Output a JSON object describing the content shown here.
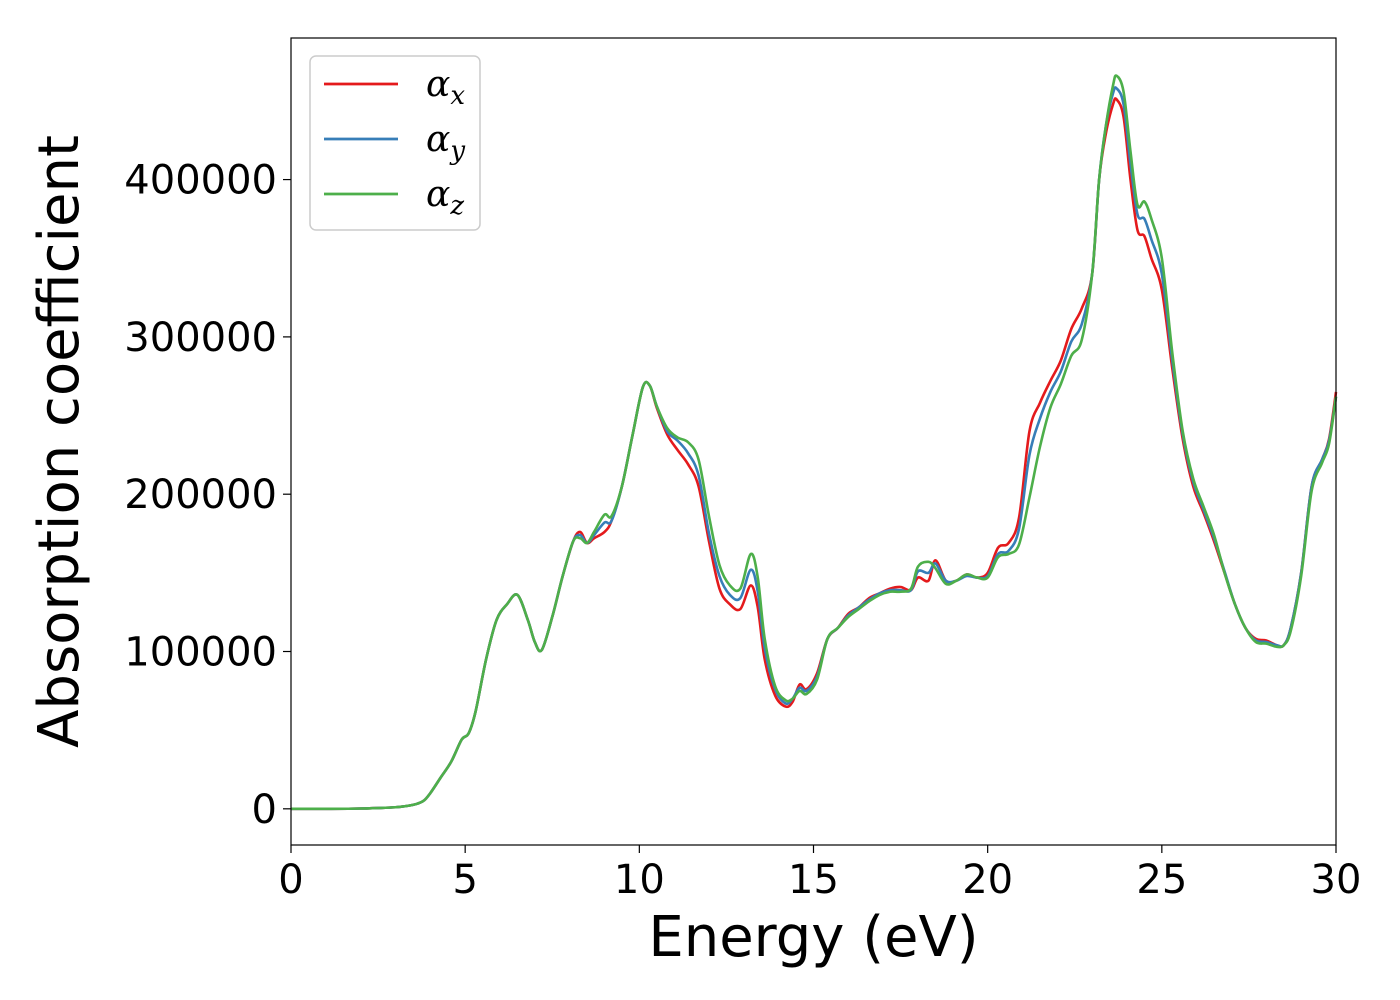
{
  "chart_data": {
    "type": "line",
    "xlabel": "Energy (eV)",
    "ylabel": "Absorption coefficient",
    "xlim": [
      0,
      30
    ],
    "ylim": [
      -23000,
      490000
    ],
    "xticks": [
      0,
      5,
      10,
      15,
      20,
      25,
      30
    ],
    "yticks": [
      0,
      100000,
      200000,
      300000,
      400000
    ],
    "grid": false,
    "legend_position": "top-left",
    "series": [
      {
        "name": "α_x",
        "legend_base": "α",
        "legend_sub": "x",
        "color": "#e41a1c",
        "x": [
          0,
          1,
          2,
          3,
          3.5,
          3.8,
          4.0,
          4.3,
          4.6,
          4.9,
          5.1,
          5.3,
          5.6,
          5.9,
          6.2,
          6.5,
          6.8,
          7.0,
          7.2,
          7.5,
          7.8,
          8.1,
          8.3,
          8.5,
          8.7,
          9.0,
          9.2,
          9.5,
          9.8,
          10.1,
          10.3,
          10.5,
          10.8,
          11.1,
          11.4,
          11.7,
          12.0,
          12.3,
          12.6,
          12.9,
          13.2,
          13.4,
          13.6,
          13.9,
          14.2,
          14.4,
          14.6,
          14.8,
          15.1,
          15.4,
          15.7,
          16.0,
          16.3,
          16.6,
          16.9,
          17.2,
          17.5,
          17.8,
          18.0,
          18.3,
          18.5,
          18.8,
          19.1,
          19.4,
          19.7,
          20.0,
          20.3,
          20.6,
          20.9,
          21.2,
          21.5,
          21.8,
          22.1,
          22.4,
          22.7,
          23.0,
          23.2,
          23.4,
          23.6,
          23.7,
          23.9,
          24.1,
          24.3,
          24.5,
          24.7,
          25.0,
          25.3,
          25.6,
          25.9,
          26.2,
          26.5,
          26.8,
          27.1,
          27.4,
          27.7,
          28.0,
          28.3,
          28.5,
          28.7,
          29.0,
          29.3,
          29.6,
          29.8,
          30.0
        ],
        "y": [
          0,
          0,
          200,
          1000,
          2500,
          5000,
          10000,
          20000,
          30000,
          44000,
          48000,
          62000,
          95000,
          120000,
          130000,
          136000,
          120000,
          106000,
          101000,
          122000,
          148000,
          170000,
          176000,
          169000,
          172000,
          176000,
          183000,
          205000,
          237000,
          268000,
          269000,
          255000,
          238000,
          228000,
          219000,
          205000,
          170000,
          140000,
          130000,
          127000,
          142000,
          128000,
          95000,
          72000,
          65000,
          68000,
          79000,
          76000,
          86000,
          108000,
          115000,
          124000,
          128000,
          134000,
          137000,
          140000,
          141000,
          139000,
          147000,
          145000,
          158000,
          145000,
          145000,
          149000,
          147000,
          150000,
          166000,
          169000,
          185000,
          240000,
          258000,
          272000,
          285000,
          305000,
          318000,
          340000,
          400000,
          430000,
          448000,
          451000,
          440000,
          400000,
          368000,
          364000,
          350000,
          330000,
          280000,
          235000,
          205000,
          188000,
          170000,
          150000,
          130000,
          115000,
          108000,
          107000,
          104000,
          104000,
          115000,
          150000,
          205000,
          222000,
          235000,
          265000
        ]
      },
      {
        "name": "α_y",
        "legend_base": "α",
        "legend_sub": "y",
        "color": "#377eb8",
        "x": [
          0,
          1,
          2,
          3,
          3.5,
          3.8,
          4.0,
          4.3,
          4.6,
          4.9,
          5.1,
          5.3,
          5.6,
          5.9,
          6.2,
          6.5,
          6.8,
          7.0,
          7.2,
          7.5,
          7.8,
          8.1,
          8.3,
          8.5,
          8.7,
          9.0,
          9.2,
          9.5,
          9.8,
          10.1,
          10.3,
          10.5,
          10.8,
          11.1,
          11.4,
          11.7,
          12.0,
          12.3,
          12.6,
          12.9,
          13.2,
          13.4,
          13.6,
          13.9,
          14.2,
          14.4,
          14.6,
          14.8,
          15.1,
          15.4,
          15.7,
          16.0,
          16.3,
          16.6,
          16.9,
          17.2,
          17.5,
          17.8,
          18.0,
          18.3,
          18.5,
          18.8,
          19.1,
          19.4,
          19.7,
          20.0,
          20.3,
          20.6,
          20.9,
          21.2,
          21.5,
          21.8,
          22.1,
          22.4,
          22.7,
          23.0,
          23.2,
          23.4,
          23.6,
          23.7,
          23.9,
          24.1,
          24.3,
          24.5,
          24.7,
          25.0,
          25.3,
          25.6,
          25.9,
          26.2,
          26.5,
          26.8,
          27.1,
          27.4,
          27.7,
          28.0,
          28.3,
          28.5,
          28.7,
          29.0,
          29.3,
          29.6,
          29.8,
          30.0
        ],
        "y": [
          0,
          0,
          200,
          1000,
          2500,
          5000,
          10000,
          20000,
          30000,
          44000,
          48000,
          62000,
          95000,
          120000,
          130000,
          136000,
          120000,
          106000,
          101000,
          122000,
          148000,
          170000,
          174000,
          169000,
          174000,
          182000,
          183000,
          205000,
          237000,
          268000,
          269000,
          256000,
          240000,
          234000,
          226000,
          212000,
          175000,
          148000,
          136000,
          134000,
          152000,
          138000,
          102000,
          76000,
          67000,
          70000,
          77000,
          75000,
          84000,
          108000,
          115000,
          123000,
          128000,
          133000,
          137000,
          139000,
          139000,
          139000,
          151000,
          150000,
          156000,
          145000,
          145000,
          148000,
          147000,
          148000,
          162000,
          164000,
          178000,
          225000,
          248000,
          265000,
          278000,
          297000,
          308000,
          340000,
          400000,
          435000,
          455000,
          458000,
          448000,
          410000,
          378000,
          375000,
          362000,
          340000,
          285000,
          238000,
          208000,
          190000,
          172000,
          151000,
          130000,
          115000,
          107000,
          106000,
          104000,
          104000,
          115000,
          150000,
          205000,
          222000,
          234000,
          262000
        ]
      },
      {
        "name": "α_z",
        "legend_base": "α",
        "legend_sub": "z",
        "color": "#4daf4a",
        "x": [
          0,
          1,
          2,
          3,
          3.5,
          3.8,
          4.0,
          4.3,
          4.6,
          4.9,
          5.1,
          5.3,
          5.6,
          5.9,
          6.2,
          6.5,
          6.8,
          7.0,
          7.2,
          7.5,
          7.8,
          8.1,
          8.3,
          8.5,
          8.7,
          9.0,
          9.2,
          9.5,
          9.8,
          10.1,
          10.3,
          10.5,
          10.8,
          11.1,
          11.4,
          11.7,
          12.0,
          12.3,
          12.6,
          12.9,
          13.2,
          13.4,
          13.6,
          13.9,
          14.2,
          14.4,
          14.6,
          14.8,
          15.1,
          15.4,
          15.7,
          16.0,
          16.3,
          16.6,
          16.9,
          17.2,
          17.5,
          17.8,
          18.0,
          18.3,
          18.5,
          18.8,
          19.1,
          19.4,
          19.7,
          20.0,
          20.3,
          20.6,
          20.9,
          21.2,
          21.5,
          21.8,
          22.1,
          22.4,
          22.7,
          23.0,
          23.2,
          23.4,
          23.6,
          23.7,
          23.9,
          24.1,
          24.3,
          24.5,
          24.7,
          25.0,
          25.3,
          25.6,
          25.9,
          26.2,
          26.5,
          26.8,
          27.1,
          27.4,
          27.7,
          28.0,
          28.3,
          28.5,
          28.7,
          29.0,
          29.3,
          29.6,
          29.8,
          30.0
        ],
        "y": [
          0,
          0,
          200,
          1000,
          2500,
          5000,
          10000,
          20000,
          30000,
          44000,
          48000,
          62000,
          95000,
          120000,
          130000,
          136000,
          120000,
          106000,
          101000,
          122000,
          148000,
          170000,
          172000,
          169000,
          176000,
          187000,
          186000,
          205000,
          237000,
          268000,
          269000,
          256000,
          242000,
          236000,
          233000,
          222000,
          186000,
          155000,
          142000,
          140000,
          162000,
          147000,
          108000,
          78000,
          69000,
          70000,
          75000,
          73000,
          82000,
          108000,
          115000,
          122000,
          127000,
          132000,
          136000,
          138000,
          138000,
          140000,
          154000,
          157000,
          153000,
          143000,
          145000,
          149000,
          147000,
          147000,
          160000,
          162000,
          168000,
          198000,
          230000,
          255000,
          270000,
          288000,
          298000,
          340000,
          400000,
          435000,
          460000,
          466000,
          456000,
          418000,
          384000,
          386000,
          375000,
          350000,
          290000,
          240000,
          210000,
          192000,
          174000,
          150000,
          130000,
          115000,
          106000,
          105000,
          103000,
          104000,
          113000,
          148000,
          202000,
          220000,
          232000,
          262000
        ]
      }
    ]
  }
}
